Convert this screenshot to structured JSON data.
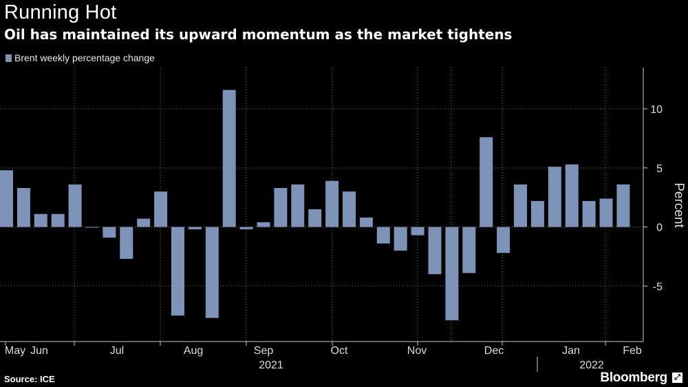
{
  "title": "Running Hot",
  "subtitle": "Oil has maintained its upward momentum as the market tightens",
  "source": "Source: ICE",
  "brand": "Bloomberg",
  "brand_icon": "expand-icon",
  "colors": {
    "bar": "#7d93b8",
    "background": "#000000",
    "grid": "#7a7a7a"
  },
  "chart_data": {
    "type": "bar",
    "title": "Running Hot",
    "legend": [
      "Brent weekly percentage change"
    ],
    "ylabel": "Percent",
    "ylim": [
      -9.7,
      13.5
    ],
    "yticks": [
      -5,
      0,
      5,
      10
    ],
    "grid": true,
    "month_labels": [
      "May",
      "Jun",
      "Jul",
      "Aug",
      "Sep",
      "Oct",
      "Nov",
      "Dec",
      "Jan",
      "Feb"
    ],
    "year_labels": [
      "2021",
      "2022"
    ],
    "series": [
      {
        "name": "Brent weekly percentage change",
        "values": [
          4.8,
          3.3,
          1.1,
          1.1,
          3.6,
          0.0,
          -0.9,
          -2.7,
          0.7,
          3.0,
          -7.5,
          -0.2,
          -7.7,
          11.6,
          -0.2,
          0.4,
          3.3,
          3.6,
          1.5,
          3.9,
          3.0,
          0.8,
          -1.4,
          -2.0,
          -0.7,
          -4.0,
          -7.9,
          -3.9,
          7.6,
          -2.2,
          3.6,
          2.2,
          5.1,
          5.3,
          2.2,
          2.4,
          3.6
        ]
      }
    ]
  }
}
